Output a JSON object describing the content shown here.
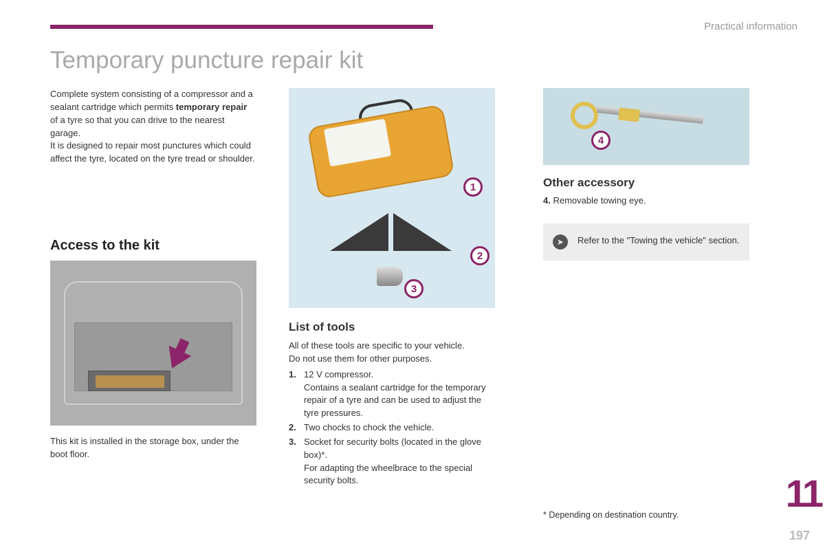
{
  "header": {
    "section": "Practical information"
  },
  "page": {
    "title": "Temporary puncture repair kit",
    "chapter_number": "11",
    "page_number": "197"
  },
  "intro": {
    "line1": "Complete system consisting of a compressor and a sealant cartridge which permits ",
    "bold": "temporary repair",
    "line2": " of a tyre so that you can drive to the nearest garage.",
    "line3": "It is designed to repair most punctures which could affect the tyre, located on the tyre tread or shoulder."
  },
  "access": {
    "heading": "Access to the kit",
    "caption": "This kit is installed in the storage box, under the boot floor."
  },
  "callouts": {
    "c1": "1",
    "c2": "2",
    "c3": "3",
    "c4": "4"
  },
  "tools": {
    "heading": "List of tools",
    "intro1": "All of these tools are specific to your vehicle.",
    "intro2": "Do not use them for other purposes.",
    "items": [
      {
        "num": "1.",
        "text": "12 V compressor.\nContains a sealant cartridge for the temporary repair of a tyre and can be used to adjust the tyre pressures."
      },
      {
        "num": "2.",
        "text": "Two chocks to chock the vehicle."
      },
      {
        "num": "3.",
        "text": "Socket for security bolts (located in the glove box)*.\nFor adapting the wheelbrace to the special security bolts."
      }
    ]
  },
  "other": {
    "heading": "Other accessory",
    "num": "4.",
    "text": " Removable towing eye."
  },
  "refer": {
    "text": "Refer to the \"Towing the vehicle\" section."
  },
  "footnote": "* Depending on destination country."
}
